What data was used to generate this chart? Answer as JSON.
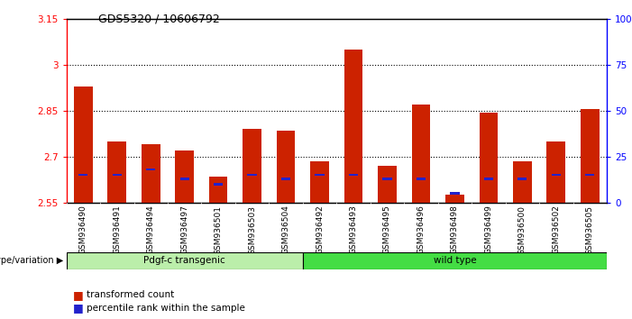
{
  "title": "GDS5320 / 10606792",
  "samples": [
    "GSM936490",
    "GSM936491",
    "GSM936494",
    "GSM936497",
    "GSM936501",
    "GSM936503",
    "GSM936504",
    "GSM936492",
    "GSM936493",
    "GSM936495",
    "GSM936496",
    "GSM936498",
    "GSM936499",
    "GSM936500",
    "GSM936502",
    "GSM936505"
  ],
  "red_values": [
    2.93,
    2.75,
    2.74,
    2.72,
    2.635,
    2.79,
    2.785,
    2.685,
    3.05,
    2.67,
    2.87,
    2.575,
    2.845,
    2.685,
    2.75,
    2.855
  ],
  "blue_pct": [
    15,
    15,
    18,
    13,
    10,
    15,
    13,
    15,
    15,
    13,
    13,
    5,
    13,
    13,
    15,
    15
  ],
  "y_min": 2.55,
  "y_max": 3.15,
  "y_ticks": [
    2.55,
    2.7,
    2.85,
    3.0,
    3.15
  ],
  "y_tick_labels": [
    "2.55",
    "2.7",
    "2.85",
    "3",
    "3.15"
  ],
  "y2_ticks": [
    0,
    25,
    50,
    75,
    100
  ],
  "y2_tick_labels": [
    "0",
    "25",
    "50",
    "75",
    "100%"
  ],
  "group1_label": "Pdgf-c transgenic",
  "group2_label": "wild type",
  "group1_count": 7,
  "group_label_title": "genotype/variation",
  "legend_items": [
    "transformed count",
    "percentile rank within the sample"
  ],
  "bar_color": "#cc2200",
  "blue_color": "#2222cc",
  "xticklabel_bg": "#d8d8d8",
  "group1_bg": "#bbeeaa",
  "group2_bg": "#44dd44",
  "plot_bg": "#ffffff",
  "bar_width": 0.55,
  "base_value": 2.55
}
